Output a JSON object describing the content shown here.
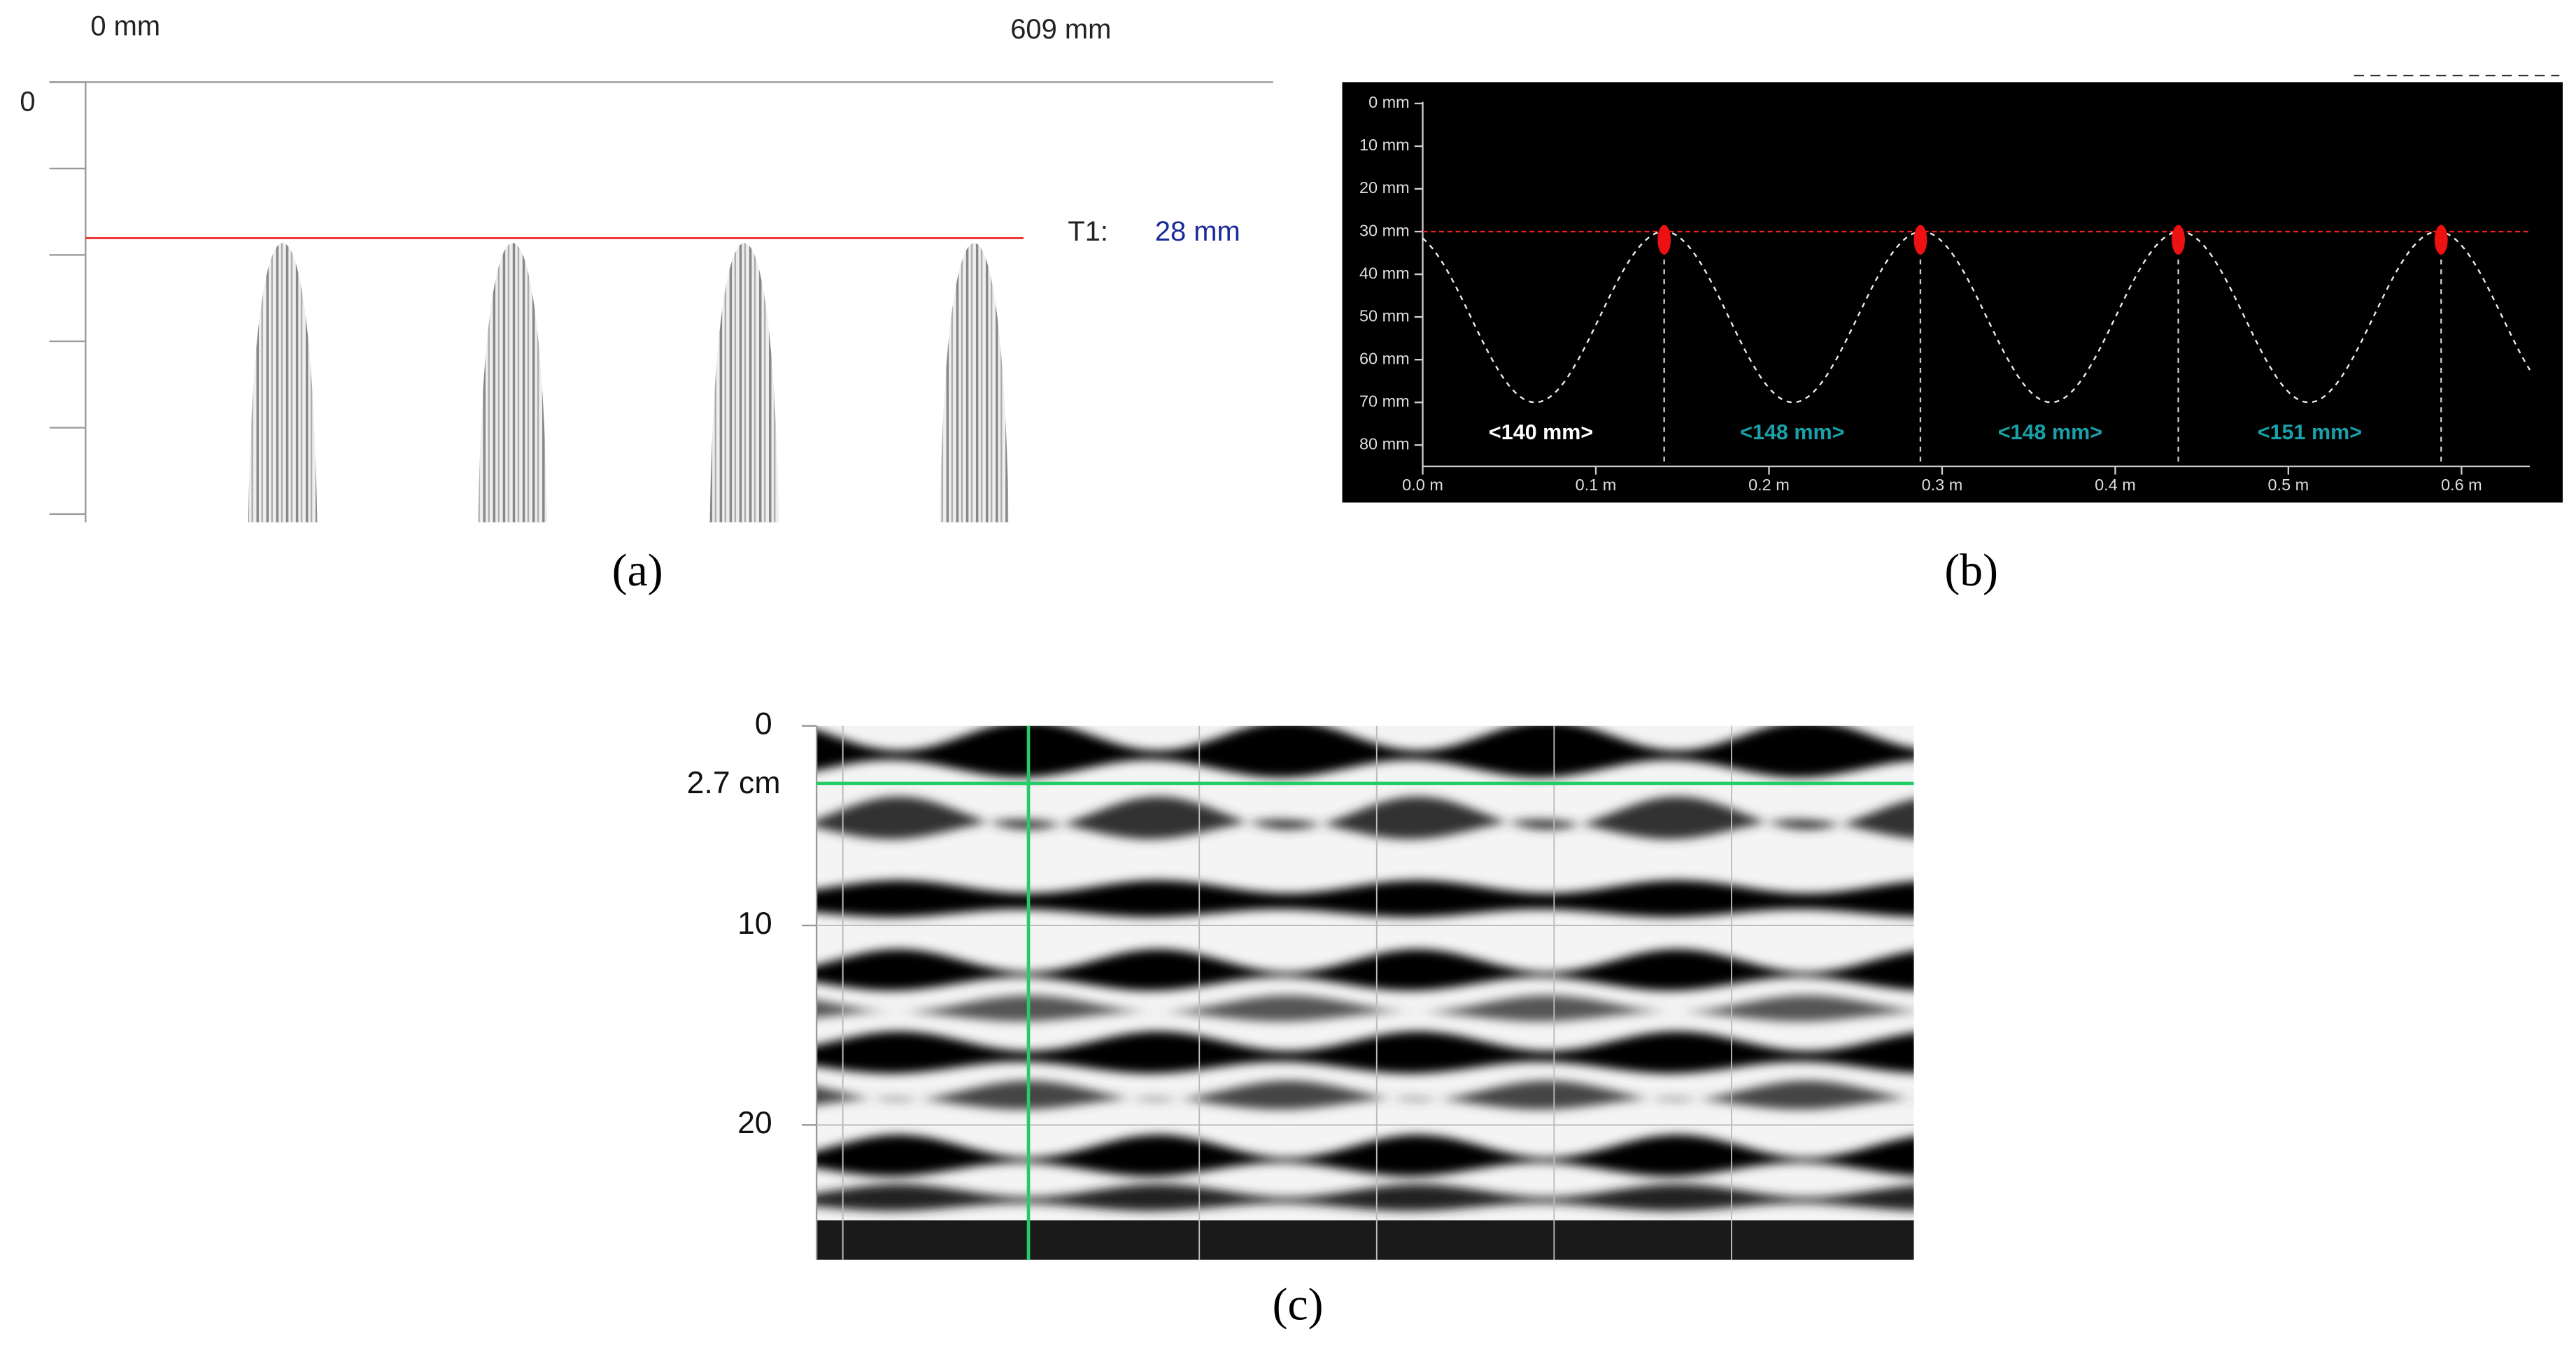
{
  "panels": [
    {
      "caption": "(a)",
      "x_start": "0 mm",
      "x_end": "609 mm",
      "depth_label": 0,
      "marker_label": "T1:",
      "marker_value": "28 mm"
    },
    {
      "caption": "(b)",
      "y_ticks": [
        "0 mm",
        "10 mm",
        "20 mm",
        "30 mm",
        "40 mm",
        "50 mm",
        "60 mm",
        "70 mm",
        "80 mm"
      ],
      "x_ticks": [
        "0.0 m",
        "0.1 m",
        "0.2 m",
        "0.3 m",
        "0.4 m",
        "0.5 m",
        "0.6 m"
      ],
      "spacings": [
        "<140 mm>",
        "<148 mm>",
        "<148 mm>",
        "<151 mm>"
      ]
    },
    {
      "caption": "(c)",
      "y_ticks": [
        0,
        10,
        20
      ],
      "marker": "2.7 cm"
    }
  ]
}
